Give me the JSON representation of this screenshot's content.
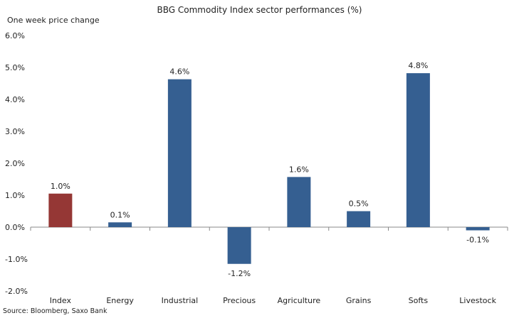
{
  "chart_data": {
    "type": "bar",
    "title": "BBG Commodity Index sector performances (%)",
    "ylabel": "One week price change",
    "source": "Source: Bloomberg, Saxo Bank",
    "categories": [
      "Index",
      "Energy",
      "Industrial",
      "Precious",
      "Agriculture",
      "Grains",
      "Softs",
      "Livestock"
    ],
    "values": [
      1.05,
      0.15,
      4.63,
      -1.15,
      1.57,
      0.5,
      4.82,
      -0.1
    ],
    "data_labels": [
      "1.0%",
      "0.1%",
      "4.6%",
      "-1.2%",
      "1.6%",
      "0.5%",
      "4.8%",
      "-0.1%"
    ],
    "ylim": [
      -2,
      6
    ],
    "yticks": [
      "-2.0%",
      "-1.0%",
      "0.0%",
      "1.0%",
      "2.0%",
      "3.0%",
      "4.0%",
      "5.0%",
      "6.0%"
    ],
    "grid": false,
    "colors": {
      "default": "#355F91",
      "highlight": "#953735"
    },
    "highlight_index": 0
  }
}
